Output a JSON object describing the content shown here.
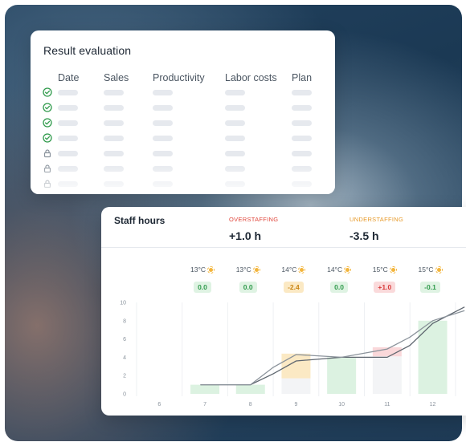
{
  "result_evaluation": {
    "title": "Result evaluation",
    "columns": [
      "Date",
      "Sales",
      "Productivity",
      "Labor costs",
      "Plan"
    ],
    "rows": [
      {
        "status": "check"
      },
      {
        "status": "check"
      },
      {
        "status": "check"
      },
      {
        "status": "check"
      },
      {
        "status": "lock"
      },
      {
        "status": "lock"
      },
      {
        "status": "lock"
      }
    ]
  },
  "staff_hours": {
    "title": "Staff hours",
    "overstaffing": {
      "label": "OVERSTAFFING",
      "value": "+1.0 h",
      "color": "#e0453a"
    },
    "understaffing": {
      "label": "UNDERSTAFFING",
      "value": "-3.5 h",
      "color": "#e79a2a"
    },
    "days": [
      {
        "temp": "13°C",
        "badge": "0.0",
        "kind": "ok"
      },
      {
        "temp": "13°C",
        "badge": "0.0",
        "kind": "ok"
      },
      {
        "temp": "14°C",
        "badge": "-2.4",
        "kind": "under"
      },
      {
        "temp": "14°C",
        "badge": "0.0",
        "kind": "ok"
      },
      {
        "temp": "15°C",
        "badge": "+1.0",
        "kind": "over"
      },
      {
        "temp": "15°C",
        "badge": "-0.1",
        "kind": "ok"
      }
    ],
    "colors": {
      "ok_bg": "#dff3e3",
      "ok_text": "#2f9a4b",
      "under_bg": "#fbe9c4",
      "under_text": "#c98514",
      "over_bg": "#fadadb",
      "over_text": "#d93a3a"
    }
  },
  "chart_data": {
    "type": "bar",
    "categories": [
      "6",
      "7",
      "8",
      "9",
      "10",
      "11",
      "12"
    ],
    "ylim": [
      0,
      10
    ],
    "yticks": [
      "0",
      "2",
      "4",
      "6",
      "8",
      "10"
    ],
    "series": [
      {
        "values": [
          0,
          1,
          1,
          1.7,
          4,
          4.1,
          8
        ]
      },
      {
        "values": [
          0,
          0,
          0,
          2.7,
          0,
          0,
          0
        ]
      },
      {
        "values": [
          0,
          0,
          0,
          0,
          0,
          1,
          0
        ]
      }
    ],
    "lines": [
      {
        "x": [
          6.9,
          7.2,
          8,
          8.5,
          9,
          10,
          11,
          11.5,
          12,
          12.7
        ],
        "y": [
          1,
          1,
          1,
          2.2,
          3.6,
          4,
          4,
          5.3,
          7.7,
          9.5
        ]
      },
      {
        "x": [
          6.9,
          7.2,
          8,
          8.5,
          9,
          10,
          11,
          11.5,
          12,
          12.7
        ],
        "y": [
          1,
          1,
          1,
          2.9,
          4.3,
          4,
          4.9,
          6.2,
          8,
          9.1
        ]
      }
    ]
  }
}
